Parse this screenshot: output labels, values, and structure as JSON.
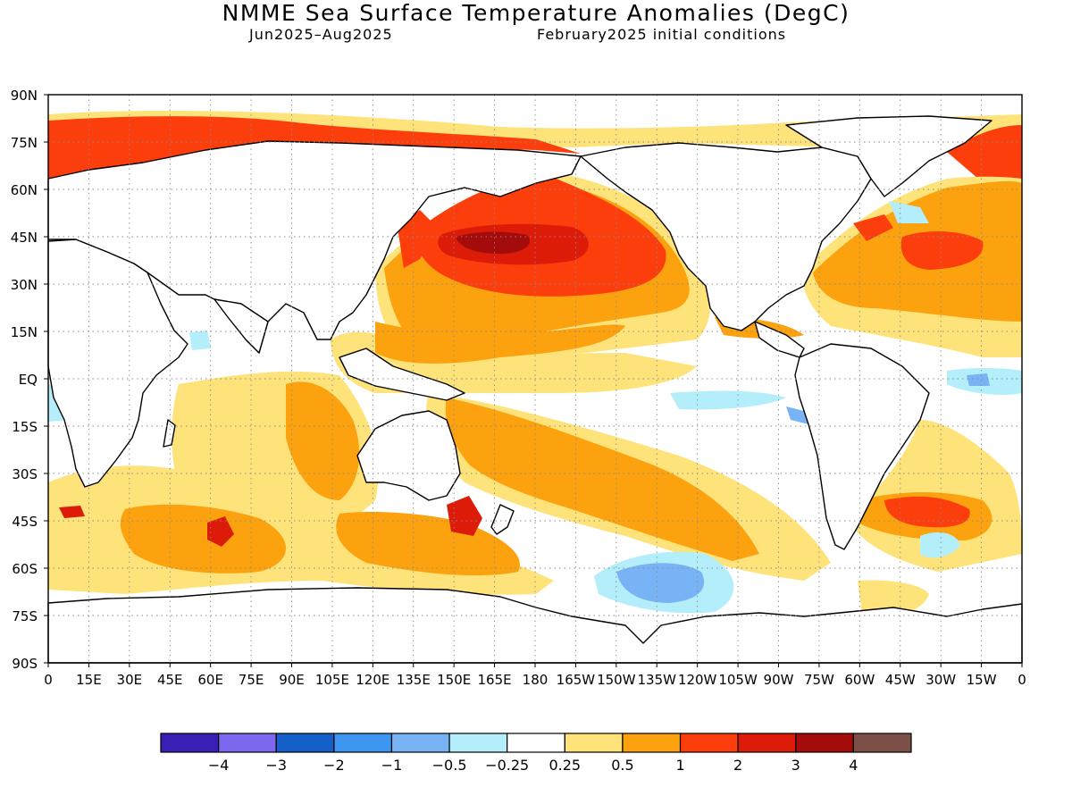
{
  "title": "NMME Sea Surface Temperature Anomalies (DegC)",
  "subtitle_period": "Jun2025–Aug2025",
  "subtitle_init": "February2025 initial conditions",
  "lat_labels": [
    "90N",
    "75N",
    "60N",
    "45N",
    "30N",
    "15N",
    "EQ",
    "15S",
    "30S",
    "45S",
    "60S",
    "75S",
    "90S"
  ],
  "lon_labels": [
    "0",
    "15E",
    "30E",
    "45E",
    "60E",
    "75E",
    "90E",
    "105E",
    "120E",
    "135E",
    "150E",
    "165E",
    "180",
    "165W",
    "150W",
    "135W",
    "120W",
    "105W",
    "90W",
    "75W",
    "60W",
    "45W",
    "30W",
    "15W",
    "0"
  ],
  "colorbar": {
    "colors": [
      "#3b1fb5",
      "#7b68ee",
      "#1560c8",
      "#3c96ef",
      "#78b4f5",
      "#b4eefa",
      "#ffffff",
      "#fde37a",
      "#fba20e",
      "#fc3d0c",
      "#dd1b09",
      "#a40b0b",
      "#7c4f47"
    ],
    "labels": [
      "−4",
      "−3",
      "−2",
      "−1",
      "−0.5",
      "−0.25",
      "0.25",
      "0.5",
      "1",
      "2",
      "3",
      "4"
    ]
  },
  "legend_colors": {
    "anom_0_25": "#fde37a",
    "anom_0_5": "#fba20e",
    "anom_1": "#fc3d0c",
    "anom_2": "#dd1b09",
    "anom_3": "#a40b0b",
    "anom_4": "#7c4f47",
    "neg_0_25": "#b4eefa",
    "neg_0_5": "#78b4f5",
    "land": "#ffffff"
  }
}
